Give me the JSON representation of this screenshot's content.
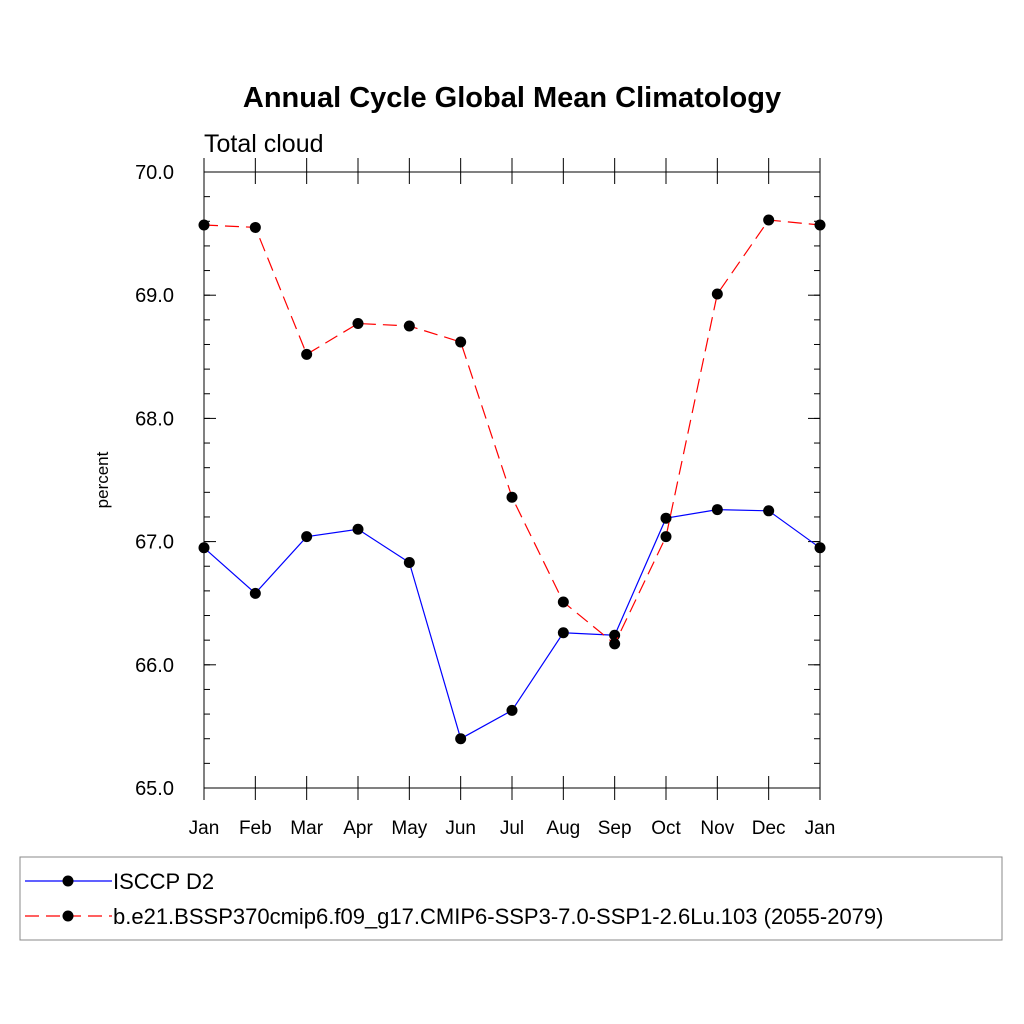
{
  "chart_data": {
    "type": "line",
    "title": "Annual Cycle Global Mean Climatology",
    "subtitle": "Total cloud",
    "xlabel": "",
    "ylabel": "percent",
    "categories": [
      "Jan",
      "Feb",
      "Mar",
      "Apr",
      "May",
      "Jun",
      "Jul",
      "Aug",
      "Sep",
      "Oct",
      "Nov",
      "Dec",
      "Jan"
    ],
    "ylim": [
      65.0,
      70.0
    ],
    "yticks": [
      "65.0",
      "66.0",
      "67.0",
      "68.0",
      "69.0",
      "70.0"
    ],
    "grid": false,
    "legend_position": "bottom",
    "series": [
      {
        "name": "ISCCP D2",
        "color": "#0000ff",
        "dash": "solid",
        "marker": "circle",
        "values": [
          66.95,
          66.58,
          67.04,
          67.1,
          66.83,
          65.4,
          65.63,
          66.26,
          66.24,
          67.19,
          67.26,
          67.25,
          66.95
        ]
      },
      {
        "name": "b.e21.BSSP370cmip6.f09_g17.CMIP6-SSP3-7.0-SSP1-2.6Lu.103 (2055-2079)",
        "color": "#ff0000",
        "dash": "dashed",
        "marker": "circle",
        "values": [
          69.57,
          69.55,
          68.52,
          68.77,
          68.75,
          68.62,
          67.36,
          66.51,
          66.17,
          67.04,
          69.01,
          69.61,
          69.57
        ]
      }
    ]
  }
}
